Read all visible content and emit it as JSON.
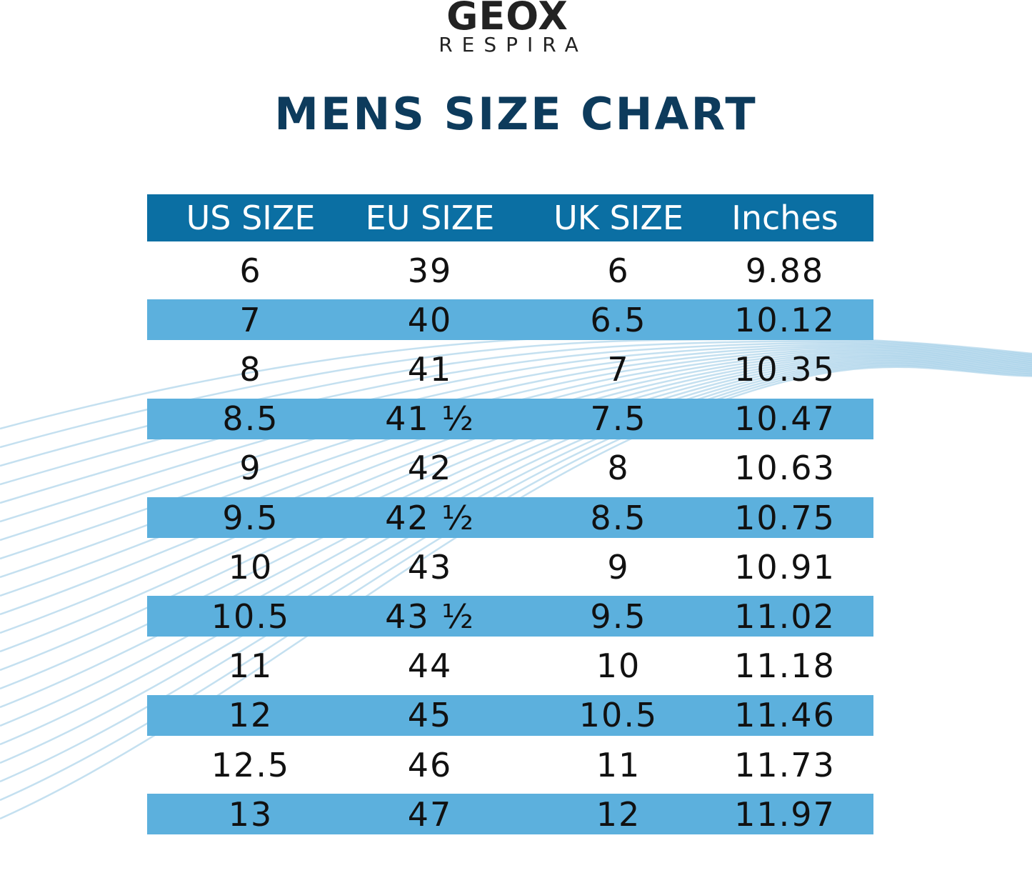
{
  "logo": {
    "brand": "GEOX",
    "tagline": "RESPIRA"
  },
  "title": "MENS SIZE CHART",
  "colors": {
    "title": "#0d3b5c",
    "header_bg": "#0b6fa3",
    "stripe_bg": "#5cb0dd",
    "waves": "#9ccbe6"
  },
  "table": {
    "headers": [
      "US SIZE",
      "EU SIZE",
      "UK SIZE",
      "Inches"
    ],
    "rows": [
      [
        "6",
        "39",
        "6",
        "9.88"
      ],
      [
        "7",
        "40",
        "6.5",
        "10.12"
      ],
      [
        "8",
        "41",
        "7",
        "10.35"
      ],
      [
        "8.5",
        "41 ½",
        "7.5",
        "10.47"
      ],
      [
        "9",
        "42",
        "8",
        "10.63"
      ],
      [
        "9.5",
        "42 ½",
        "8.5",
        "10.75"
      ],
      [
        "10",
        "43",
        "9",
        "10.91"
      ],
      [
        "10.5",
        "43 ½",
        "9.5",
        "11.02"
      ],
      [
        "11",
        "44",
        "10",
        "11.18"
      ],
      [
        "12",
        "45",
        "10.5",
        "11.46"
      ],
      [
        "12.5",
        "46",
        "11",
        "11.73"
      ],
      [
        "13",
        "47",
        "12",
        "11.97"
      ]
    ]
  }
}
